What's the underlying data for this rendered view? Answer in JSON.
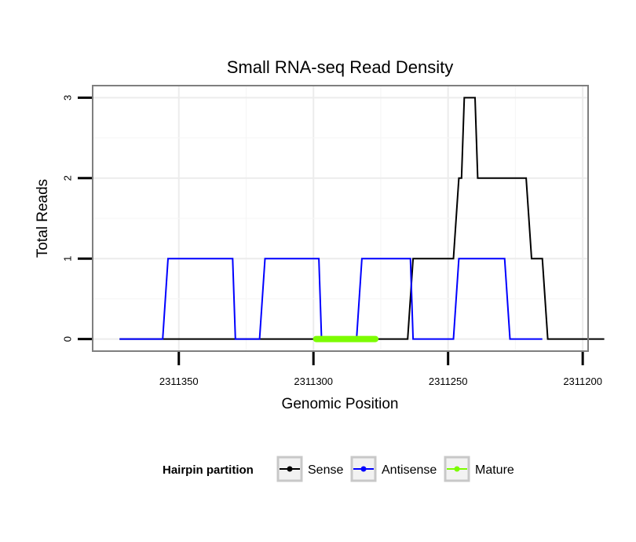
{
  "chart_data": {
    "type": "line",
    "title": "Small RNA-seq Read Density",
    "xlabel": "Genomic Position",
    "ylabel": "Total Reads",
    "x_reversed": true,
    "xlim": [
      2311382,
      2311198
    ],
    "ylim": [
      -0.15,
      3.15
    ],
    "xticks": [
      2311350,
      2311300,
      2311250,
      2311200
    ],
    "xtick_labels": [
      "2311350",
      "2311300",
      "2311250",
      "2311200"
    ],
    "yticks": [
      0,
      1,
      2,
      3
    ],
    "ytick_labels": [
      "0",
      "1",
      "2",
      "3"
    ],
    "grid": true,
    "legend": {
      "title": "Hairpin partition",
      "position": "bottom",
      "entries": [
        "Sense",
        "Antisense",
        "Mature"
      ]
    },
    "series": [
      {
        "name": "Sense",
        "color": "#000000",
        "x": [
          2311372,
          2311265,
          2311263,
          2311248,
          2311246,
          2311245,
          2311244,
          2311240,
          2311239,
          2311235,
          2311233,
          2311234,
          2311221,
          2311219,
          2311215,
          2311213,
          2311192
        ],
        "y": [
          0,
          0,
          1,
          1,
          2,
          2,
          3,
          3,
          2,
          2,
          2,
          2,
          2,
          1,
          1,
          0,
          0
        ]
      },
      {
        "name": "Antisense",
        "color": "#0000ff",
        "x": [
          2311372,
          2311356,
          2311354,
          2311330,
          2311329,
          2311320,
          2311318,
          2311298,
          2311297,
          2311284,
          2311282,
          2311264,
          2311263,
          2311248,
          2311246,
          2311229,
          2311227,
          2311215
        ],
        "y": [
          0,
          0,
          1,
          1,
          0,
          0,
          1,
          1,
          0,
          0,
          1,
          1,
          0,
          0,
          1,
          1,
          0,
          0
        ]
      },
      {
        "name": "Mature",
        "color": "#7cfc00",
        "x": [
          2311299,
          2311277
        ],
        "y": [
          0,
          0
        ]
      }
    ]
  }
}
